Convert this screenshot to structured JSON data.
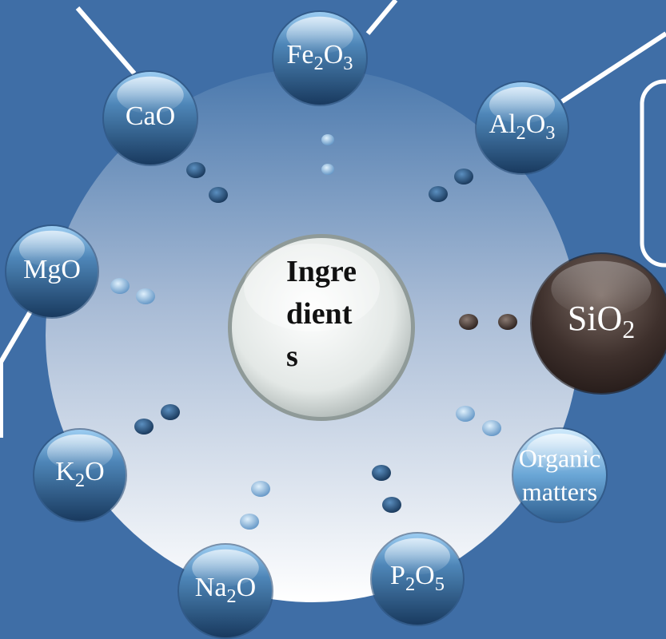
{
  "center_lines": [
    "Ingre",
    "dient",
    "s"
  ],
  "nodes": [
    {
      "label": [
        "Fe",
        "2",
        "O",
        "3"
      ],
      "style": "blue"
    },
    {
      "label": [
        "CaO"
      ],
      "style": "blue"
    },
    {
      "label": [
        "Al",
        "2",
        "O",
        "3"
      ],
      "style": "blue"
    },
    {
      "label": [
        "MgO"
      ],
      "style": "blue"
    },
    {
      "label": [
        "SiO",
        "2"
      ],
      "style": "dark"
    },
    {
      "label": [
        "K",
        "2",
        "O"
      ],
      "style": "blue"
    },
    {
      "lines": [
        "Organic",
        "matters"
      ],
      "style": "light"
    },
    {
      "label": [
        "Na",
        "2",
        "O"
      ],
      "style": "blue"
    },
    {
      "label": [
        "P",
        "2",
        "O",
        "5"
      ],
      "style": "blue"
    }
  ]
}
